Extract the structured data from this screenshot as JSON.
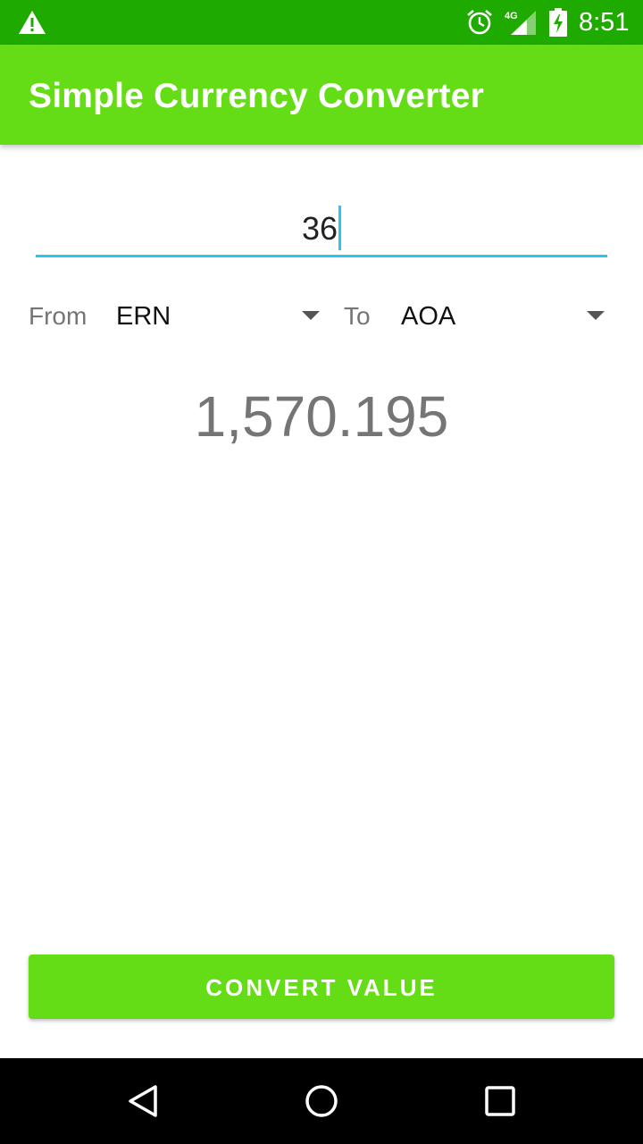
{
  "status_bar": {
    "time": "8:51",
    "network": "4G",
    "icons": [
      "warning-icon",
      "alarm-icon",
      "signal-4g-icon",
      "battery-charging-icon"
    ]
  },
  "app_bar": {
    "title": "Simple Currency Converter",
    "color": "#64dd17"
  },
  "amount": {
    "value": "36"
  },
  "conversion": {
    "from_label": "From",
    "from_currency": "ERN",
    "to_label": "To",
    "to_currency": "AOA",
    "result": "1,570.195"
  },
  "actions": {
    "convert_label": "CONVERT VALUE"
  },
  "nav_bar": {
    "icons": [
      "back-icon",
      "home-icon",
      "recents-icon"
    ]
  },
  "colors": {
    "status_bar": "#1faa00",
    "accent": "#26c6f0",
    "primary": "#64dd17"
  }
}
